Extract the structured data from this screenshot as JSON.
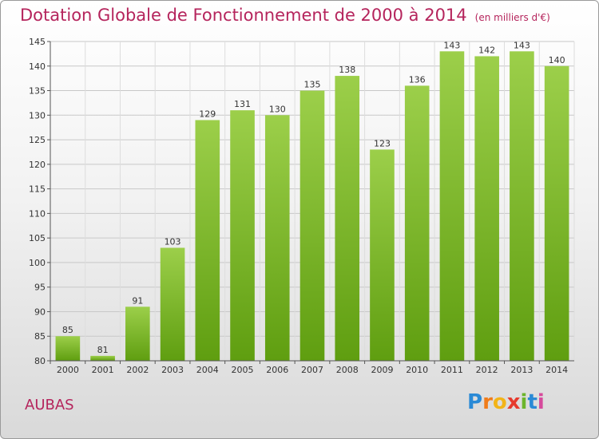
{
  "header": {
    "title": "Dotation Globale de Fonctionnement de 2000 à 2014",
    "unit": "(en milliers d'€)"
  },
  "footer": {
    "city": "AUBAS",
    "logo_text": "Proxiti",
    "logo_letters": [
      "P",
      "r",
      "o",
      "x",
      "i",
      "t",
      "i"
    ]
  },
  "colors": {
    "title": "#b5245c",
    "bar_top": "#9ccf4a",
    "bar_bottom": "#5f9e10",
    "grid": "#c8c8c8"
  },
  "chart_data": {
    "type": "bar",
    "title": "Dotation Globale de Fonctionnement de 2000 à 2014",
    "xlabel": "",
    "ylabel": "(en milliers d'€)",
    "categories": [
      "2000",
      "2001",
      "2002",
      "2003",
      "2004",
      "2005",
      "2006",
      "2007",
      "2008",
      "2009",
      "2010",
      "2011",
      "2012",
      "2013",
      "2014"
    ],
    "values": [
      85,
      81,
      91,
      103,
      129,
      131,
      130,
      135,
      138,
      123,
      136,
      143,
      142,
      143,
      140
    ],
    "ylim": [
      80,
      145
    ],
    "yticks": [
      80,
      85,
      90,
      95,
      100,
      105,
      110,
      115,
      120,
      125,
      130,
      135,
      140,
      145
    ],
    "grid": true,
    "data_labels": true
  }
}
